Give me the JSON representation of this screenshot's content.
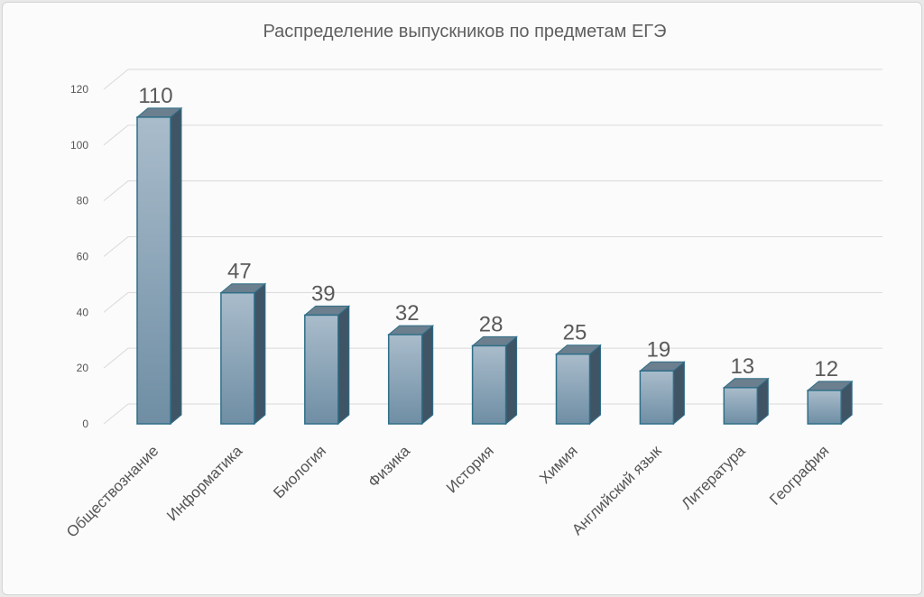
{
  "chart_data": {
    "type": "bar",
    "title": "Распределение выпускников по предметам ЕГЭ",
    "categories": [
      "Обществознание",
      "Информатика",
      "Биология",
      "Физика",
      "История",
      "Химия",
      "Английский язык",
      "Литература",
      "География"
    ],
    "values": [
      110,
      47,
      39,
      32,
      28,
      25,
      19,
      13,
      12
    ],
    "ylim": [
      0,
      120
    ],
    "yticks": [
      0,
      20,
      40,
      60,
      80,
      100,
      120
    ],
    "xlabel": "",
    "ylabel": "",
    "grid": true,
    "legend": "none",
    "style": "3d-column",
    "colors": {
      "bar_front_top": "#a9bccb",
      "bar_front_bottom": "#6f8ea4",
      "bar_side": "#3f5566",
      "bar_top": "#6b7f8f",
      "bar_edge": "#2f6f88"
    }
  }
}
